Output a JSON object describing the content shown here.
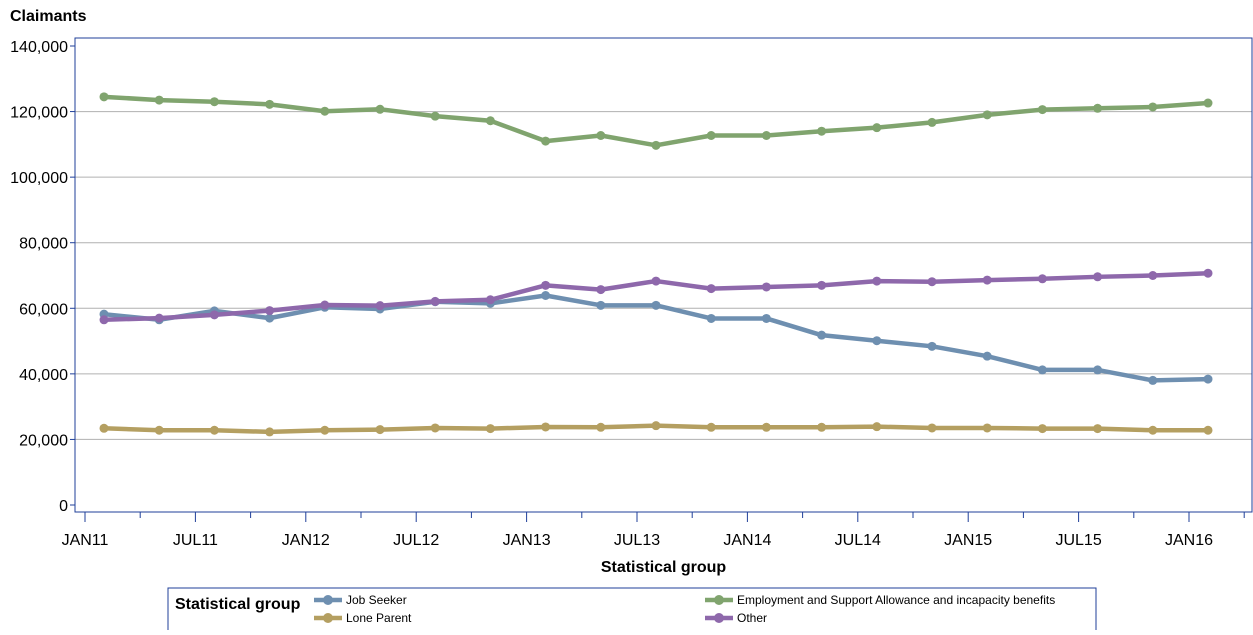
{
  "chart_data": {
    "type": "line",
    "ylabel": "Claimants",
    "xlabel": "Statistical group",
    "ylim": [
      0,
      140000
    ],
    "yticks": [
      0,
      20000,
      40000,
      60000,
      80000,
      100000,
      120000,
      140000
    ],
    "ytick_labels": [
      "0",
      "20,000",
      "40,000",
      "60,000",
      "80,000",
      "100,000",
      "120,000",
      "140,000"
    ],
    "xtick_labels": [
      "JAN11",
      "JUL11",
      "JAN12",
      "JUL12",
      "JAN13",
      "JUL13",
      "JAN14",
      "JUL14",
      "JAN15",
      "JUL15",
      "JAN16"
    ],
    "x": [
      "FEB11",
      "MAY11",
      "AUG11",
      "NOV11",
      "FEB12",
      "MAY12",
      "AUG12",
      "NOV12",
      "FEB13",
      "MAY13",
      "AUG13",
      "NOV13",
      "FEB14",
      "MAY14",
      "AUG14",
      "NOV14",
      "FEB15",
      "MAY15",
      "AUG15",
      "NOV15",
      "FEB16"
    ],
    "grid": "horizontal",
    "legend": {
      "title": "Statistical group",
      "position": "bottom"
    },
    "series": [
      {
        "name": "Job Seeker",
        "color": "#6e8fb0",
        "values": [
          58200,
          56500,
          59200,
          57000,
          60300,
          59800,
          62000,
          61500,
          63900,
          60900,
          60900,
          56900,
          56900,
          51800,
          50100,
          48400,
          45400,
          41200,
          41200,
          38000,
          38400
        ]
      },
      {
        "name": "Employment and Support Allowance and incapacity benefits",
        "color": "#80a46e",
        "values": [
          124500,
          123500,
          123000,
          122200,
          120100,
          120700,
          118600,
          117200,
          111000,
          112700,
          109700,
          112700,
          112700,
          114000,
          115100,
          116700,
          119000,
          120600,
          121000,
          121400,
          122600
        ]
      },
      {
        "name": "Lone Parent",
        "color": "#b49f61",
        "values": [
          23400,
          22800,
          22800,
          22300,
          22800,
          23000,
          23500,
          23300,
          23800,
          23700,
          24200,
          23700,
          23700,
          23700,
          23900,
          23500,
          23500,
          23300,
          23300,
          22800,
          22800
        ]
      },
      {
        "name": "Other",
        "color": "#8e68ab",
        "values": [
          56500,
          57000,
          58000,
          59300,
          61000,
          60800,
          62100,
          62600,
          67000,
          65700,
          68300,
          66000,
          66500,
          67000,
          68300,
          68100,
          68600,
          69000,
          69600,
          70000,
          70700
        ]
      }
    ]
  }
}
